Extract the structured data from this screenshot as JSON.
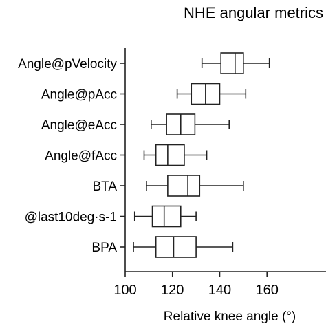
{
  "chart_data": {
    "type": "boxplot",
    "title": "NHE angular metrics",
    "xlabel": "Relative knee angle (°)",
    "ylabel": "",
    "xlim": [
      100,
      170
    ],
    "xticks": [
      100,
      120,
      140,
      160
    ],
    "grid": false,
    "categories": [
      "Angle@pVelocity",
      "Angle@pAcc",
      "Angle@eAcc",
      "Angle@fAcc",
      "BTA",
      "@last10deg·s-1",
      "BPA"
    ],
    "boxes": [
      {
        "label": "Angle@pVelocity",
        "min": 132.5,
        "q1": 140.5,
        "median": 146.5,
        "q3": 150.0,
        "max": 161.0
      },
      {
        "label": "Angle@pAcc",
        "min": 122.0,
        "q1": 128.0,
        "median": 134.0,
        "q3": 140.0,
        "max": 151.0
      },
      {
        "label": "Angle@eAcc",
        "min": 111.0,
        "q1": 117.5,
        "median": 123.5,
        "q3": 129.5,
        "max": 144.0
      },
      {
        "label": "Angle@fAcc",
        "min": 108.0,
        "q1": 113.0,
        "median": 118.0,
        "q3": 125.0,
        "max": 134.5
      },
      {
        "label": "BTA",
        "min": 109.0,
        "q1": 118.0,
        "median": 126.5,
        "q3": 131.5,
        "max": 150.0
      },
      {
        "label": "@last10deg·s-1",
        "min": 104.0,
        "q1": 111.5,
        "median": 116.5,
        "q3": 123.5,
        "max": 130.0
      },
      {
        "label": "BPA",
        "min": 103.5,
        "q1": 113.0,
        "median": 120.5,
        "q3": 130.0,
        "max": 145.5
      }
    ]
  }
}
